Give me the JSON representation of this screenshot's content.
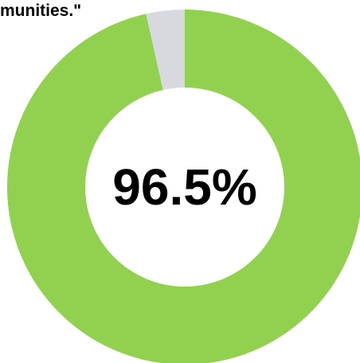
{
  "chart_data": {
    "type": "pie",
    "title": "munities.\"",
    "center_label": "96.5%",
    "slices": [
      {
        "value": 96.5,
        "color": "#92d050"
      },
      {
        "value": 3.5,
        "color": "#d8d9de"
      }
    ]
  }
}
